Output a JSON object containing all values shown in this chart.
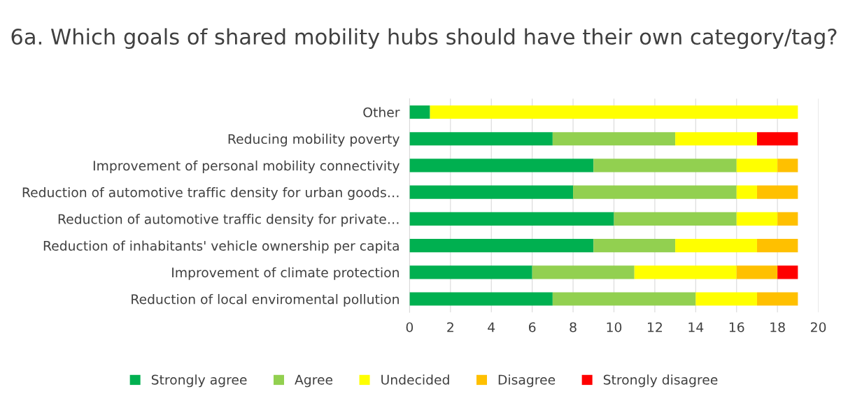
{
  "chart_data": {
    "type": "bar",
    "orientation": "horizontal",
    "stacked": true,
    "title": "6a. Which goals of shared mobility hubs should have their own category/tag?",
    "categories": [
      "Other",
      "Reducing mobility poverty",
      "Improvement of personal mobility connectivity",
      "Reduction of automotive traffic density for urban goods…",
      "Reduction of automotive traffic density for private…",
      "Reduction of inhabitants' vehicle ownership per capita",
      "Improvement of climate protection",
      "Reduction of local enviromental pollution"
    ],
    "series": [
      {
        "name": "Strongly agree",
        "color": "#00b050",
        "values": [
          1,
          7,
          9,
          8,
          10,
          9,
          6,
          7
        ]
      },
      {
        "name": "Agree",
        "color": "#92d050",
        "values": [
          0,
          6,
          7,
          8,
          6,
          4,
          5,
          7
        ]
      },
      {
        "name": "Undecided",
        "color": "#ffff00",
        "values": [
          18,
          4,
          2,
          1,
          2,
          4,
          5,
          3
        ]
      },
      {
        "name": "Disagree",
        "color": "#ffc000",
        "values": [
          0,
          0,
          1,
          2,
          1,
          2,
          2,
          2
        ]
      },
      {
        "name": "Strongly disagree",
        "color": "#ff0000",
        "values": [
          0,
          2,
          0,
          0,
          0,
          0,
          1,
          0
        ]
      }
    ],
    "xlim": [
      0,
      20
    ],
    "xticks": [
      0,
      2,
      4,
      6,
      8,
      10,
      12,
      14,
      16,
      18,
      20
    ],
    "grid": "x",
    "legend": "bottom"
  }
}
